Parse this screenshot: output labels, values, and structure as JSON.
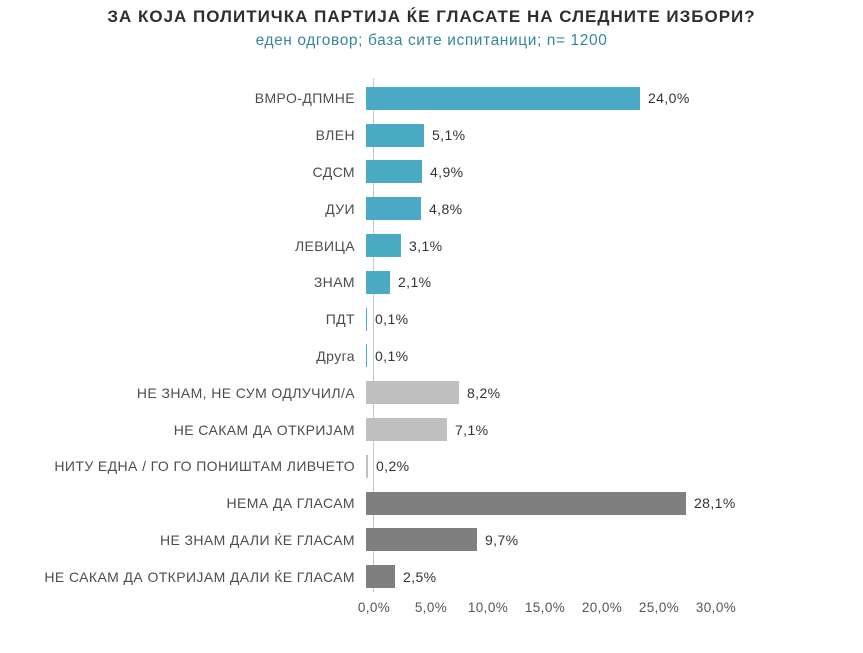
{
  "title": "ЗА КОЈА ПОЛИТИЧКА ПАРТИЈА ЌЕ ГЛАСАТЕ НА СЛЕДНИТЕ ИЗБОРИ?",
  "subtitle": "еден одговор; база сите испитаници; n= 1200",
  "chart_data": {
    "type": "bar",
    "orientation": "horizontal",
    "title": "ЗА КОЈА ПОЛИТИЧКА ПАРТИЈА ЌЕ ГЛАСАТЕ НА СЛЕДНИТЕ ИЗБОРИ?",
    "subtitle": "еден одговор; база сите испитаници; n= 1200",
    "categories": [
      "ВМРО-ДПМНЕ",
      "ВЛЕН",
      "СДСМ",
      "ДУИ",
      "ЛЕВИЦА",
      "ЗНАМ",
      "ПДТ",
      "Друга",
      "НЕ ЗНАМ, НЕ СУМ ОДЛУЧИЛ/А",
      "НЕ САКАМ ДА ОТКРИЈАМ",
      "НИТУ ЕДНА / ГО ГО ПОНИШТАМ ЛИВЧЕТО",
      "НЕМА ДА ГЛАСАМ",
      "НЕ ЗНАМ ДАЛИ ЌЕ ГЛАСАМ",
      "НЕ САКАМ ДА ОТКРИЈАМ ДАЛИ ЌЕ ГЛАСАМ"
    ],
    "values": [
      24.0,
      5.1,
      4.9,
      4.8,
      3.1,
      2.1,
      0.1,
      0.1,
      8.2,
      7.1,
      0.2,
      28.1,
      9.7,
      2.5
    ],
    "value_labels": [
      "24,0%",
      "5,1%",
      "4,9%",
      "4,8%",
      "3,1%",
      "2,1%",
      "0,1%",
      "0,1%",
      "8,2%",
      "7,1%",
      "0,2%",
      "28,1%",
      "9,7%",
      "2,5%"
    ],
    "groups": [
      "party",
      "party",
      "party",
      "party",
      "party",
      "party",
      "party",
      "party",
      "undecided",
      "undecided",
      "undecided",
      "no_vote",
      "no_vote",
      "no_vote"
    ],
    "colors": {
      "party": "#4AA9C3",
      "undecided": "#BFBFBF",
      "no_vote": "#7F7F7F"
    },
    "xlim": [
      0,
      30
    ],
    "x_tick_values": [
      0,
      5,
      10,
      15,
      20,
      25,
      30
    ],
    "x_tick_labels": [
      "0,0%",
      "5,0%",
      "10,0%",
      "15,0%",
      "20,0%",
      "25,0%",
      "30,0%"
    ],
    "grid": "off",
    "legend": "none"
  }
}
